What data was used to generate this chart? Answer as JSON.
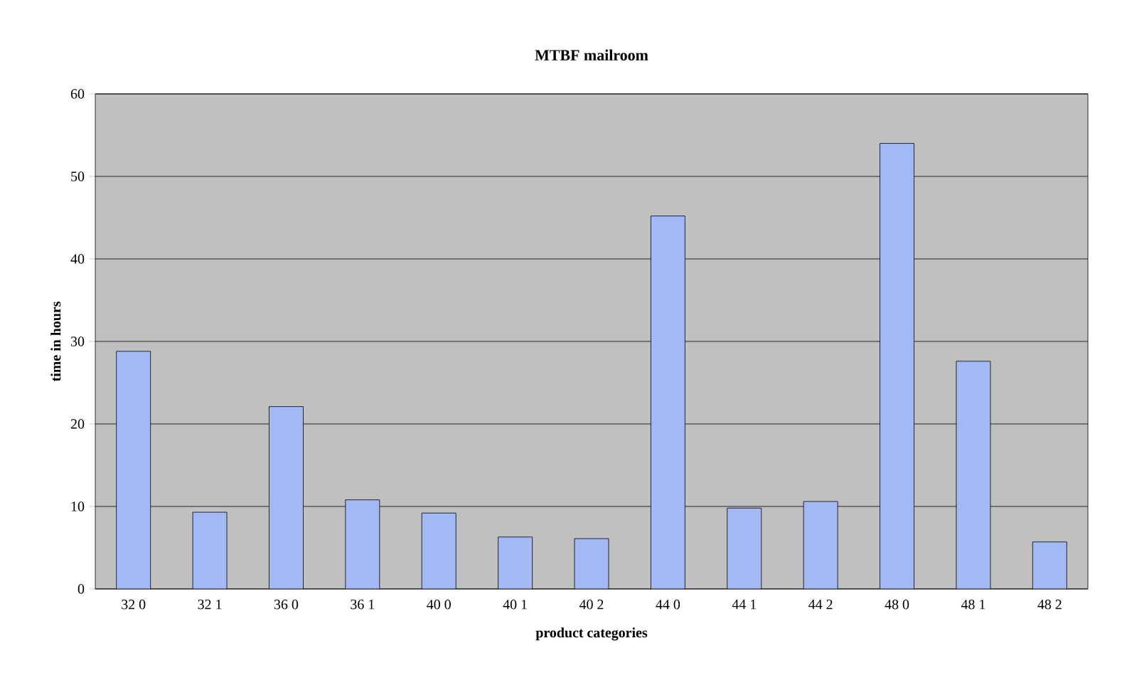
{
  "chart_data": {
    "type": "bar",
    "title": "MTBF mailroom",
    "xlabel": "product categories",
    "ylabel": "time in hours",
    "categories": [
      "32 0",
      "32 1",
      "36 0",
      "36 1",
      "40 0",
      "40 1",
      "40 2",
      "44 0",
      "44 1",
      "44 2",
      "48 0",
      "48 1",
      "48 2"
    ],
    "values": [
      28.8,
      9.3,
      22.1,
      10.8,
      9.2,
      6.3,
      6.1,
      45.2,
      9.8,
      10.6,
      54,
      27.6,
      5.7
    ],
    "color": "#a3b9f5",
    "ylim": [
      0,
      60
    ],
    "yticks": [
      0,
      10,
      20,
      30,
      40,
      50,
      60
    ],
    "grid": "y"
  }
}
